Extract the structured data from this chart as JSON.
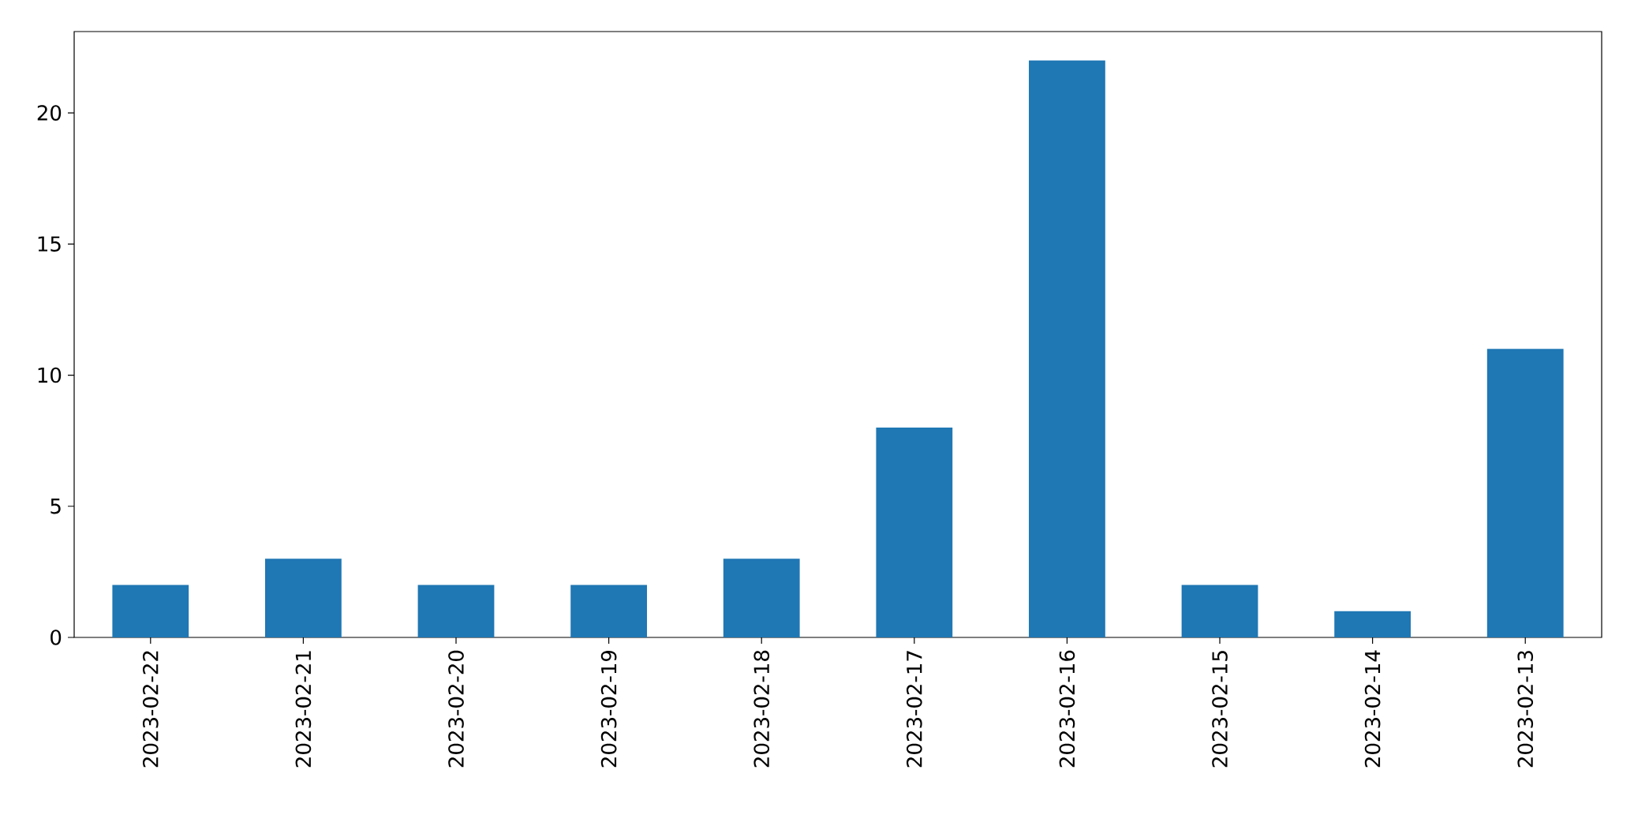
{
  "chart_data": {
    "type": "bar",
    "categories": [
      "2023-02-22",
      "2023-02-21",
      "2023-02-20",
      "2023-02-19",
      "2023-02-18",
      "2023-02-17",
      "2023-02-16",
      "2023-02-15",
      "2023-02-14",
      "2023-02-13"
    ],
    "values": [
      2,
      3,
      2,
      2,
      3,
      8,
      22,
      2,
      1,
      11
    ],
    "color": "#1f77b4",
    "ylim": [
      0,
      23.1
    ],
    "yticks": [
      0,
      5,
      10,
      15,
      20
    ]
  }
}
